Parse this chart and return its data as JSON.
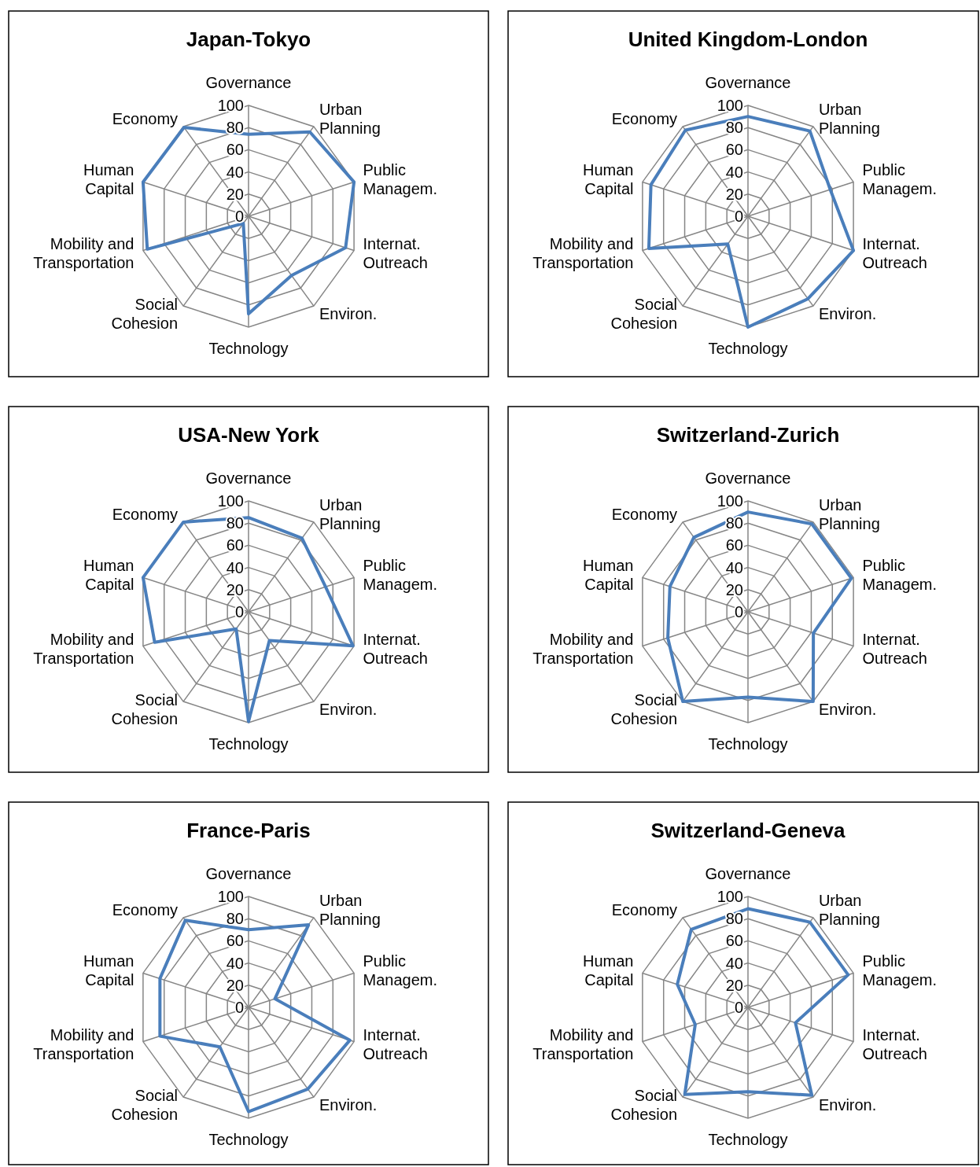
{
  "chart_data": [
    {
      "type": "radar",
      "title": "Japan-Tokyo",
      "categories": [
        "Governance",
        "Urban Planning",
        "Public Managem.",
        "Internat. Outreach",
        "Environ.",
        "Technology",
        "Social Cohesion",
        "Mobility and Transportation",
        "Human Capital",
        "Economy"
      ],
      "series": [
        {
          "color": "#4a7ebb",
          "values": [
            74,
            94,
            100,
            92,
            66,
            88,
            8,
            96,
            100,
            99
          ]
        }
      ],
      "ylim": [
        0,
        100
      ],
      "yticks": [
        0,
        20,
        40,
        60,
        80,
        100
      ],
      "grid": true
    },
    {
      "type": "radar",
      "title": "United Kingdom-London",
      "categories": [
        "Governance",
        "Urban Planning",
        "Public Managem.",
        "Internat. Outreach",
        "Environ.",
        "Technology",
        "Social Cohesion",
        "Mobility and Transportation",
        "Human Capital",
        "Economy"
      ],
      "series": [
        {
          "color": "#4a7ebb",
          "values": [
            90,
            95,
            78,
            100,
            92,
            100,
            31,
            94,
            92,
            96
          ]
        }
      ],
      "ylim": [
        0,
        100
      ],
      "yticks": [
        0,
        20,
        40,
        60,
        80,
        100
      ],
      "grid": true
    },
    {
      "type": "radar",
      "title": "USA-New York",
      "categories": [
        "Governance",
        "Urban Planning",
        "Public Managem.",
        "Internat. Outreach",
        "Environ.",
        "Technology",
        "Social Cohesion",
        "Mobility and Transportation",
        "Human Capital",
        "Economy"
      ],
      "series": [
        {
          "color": "#4a7ebb",
          "values": [
            85,
            82,
            73,
            99,
            32,
            99,
            19,
            89,
            100,
            100
          ]
        }
      ],
      "ylim": [
        0,
        100
      ],
      "yticks": [
        0,
        20,
        40,
        60,
        80,
        100
      ],
      "grid": true
    },
    {
      "type": "radar",
      "title": "Switzerland-Zurich",
      "categories": [
        "Governance",
        "Urban Planning",
        "Public Managem.",
        "Internat. Outreach",
        "Environ.",
        "Technology",
        "Social Cohesion",
        "Mobility and Transportation",
        "Human Capital",
        "Economy"
      ],
      "series": [
        {
          "color": "#4a7ebb",
          "values": [
            90,
            98,
            98,
            62,
            100,
            77,
            100,
            76,
            74,
            83
          ]
        }
      ],
      "ylim": [
        0,
        100
      ],
      "yticks": [
        0,
        20,
        40,
        60,
        80,
        100
      ],
      "grid": true
    },
    {
      "type": "radar",
      "title": "France-Paris",
      "categories": [
        "Governance",
        "Urban Planning",
        "Public Managem.",
        "Internat. Outreach",
        "Environ.",
        "Technology",
        "Social Cohesion",
        "Mobility and Transportation",
        "Human Capital",
        "Economy"
      ],
      "series": [
        {
          "color": "#4a7ebb",
          "values": [
            70,
            92,
            25,
            96,
            91,
            94,
            44,
            84,
            84,
            97
          ]
        }
      ],
      "ylim": [
        0,
        100
      ],
      "yticks": [
        0,
        20,
        40,
        60,
        80,
        100
      ],
      "grid": true
    },
    {
      "type": "radar",
      "title": "Switzerland-Geneva",
      "categories": [
        "Governance",
        "Urban Planning",
        "Public Managem.",
        "Internat. Outreach",
        "Environ.",
        "Technology",
        "Social Cohesion",
        "Mobility and Transportation",
        "Human Capital",
        "Economy"
      ],
      "series": [
        {
          "color": "#4a7ebb",
          "values": [
            89,
            95,
            95,
            45,
            98,
            76,
            97,
            50,
            67,
            87
          ]
        }
      ],
      "ylim": [
        0,
        100
      ],
      "yticks": [
        0,
        20,
        40,
        60,
        80,
        100
      ],
      "grid": true
    }
  ]
}
